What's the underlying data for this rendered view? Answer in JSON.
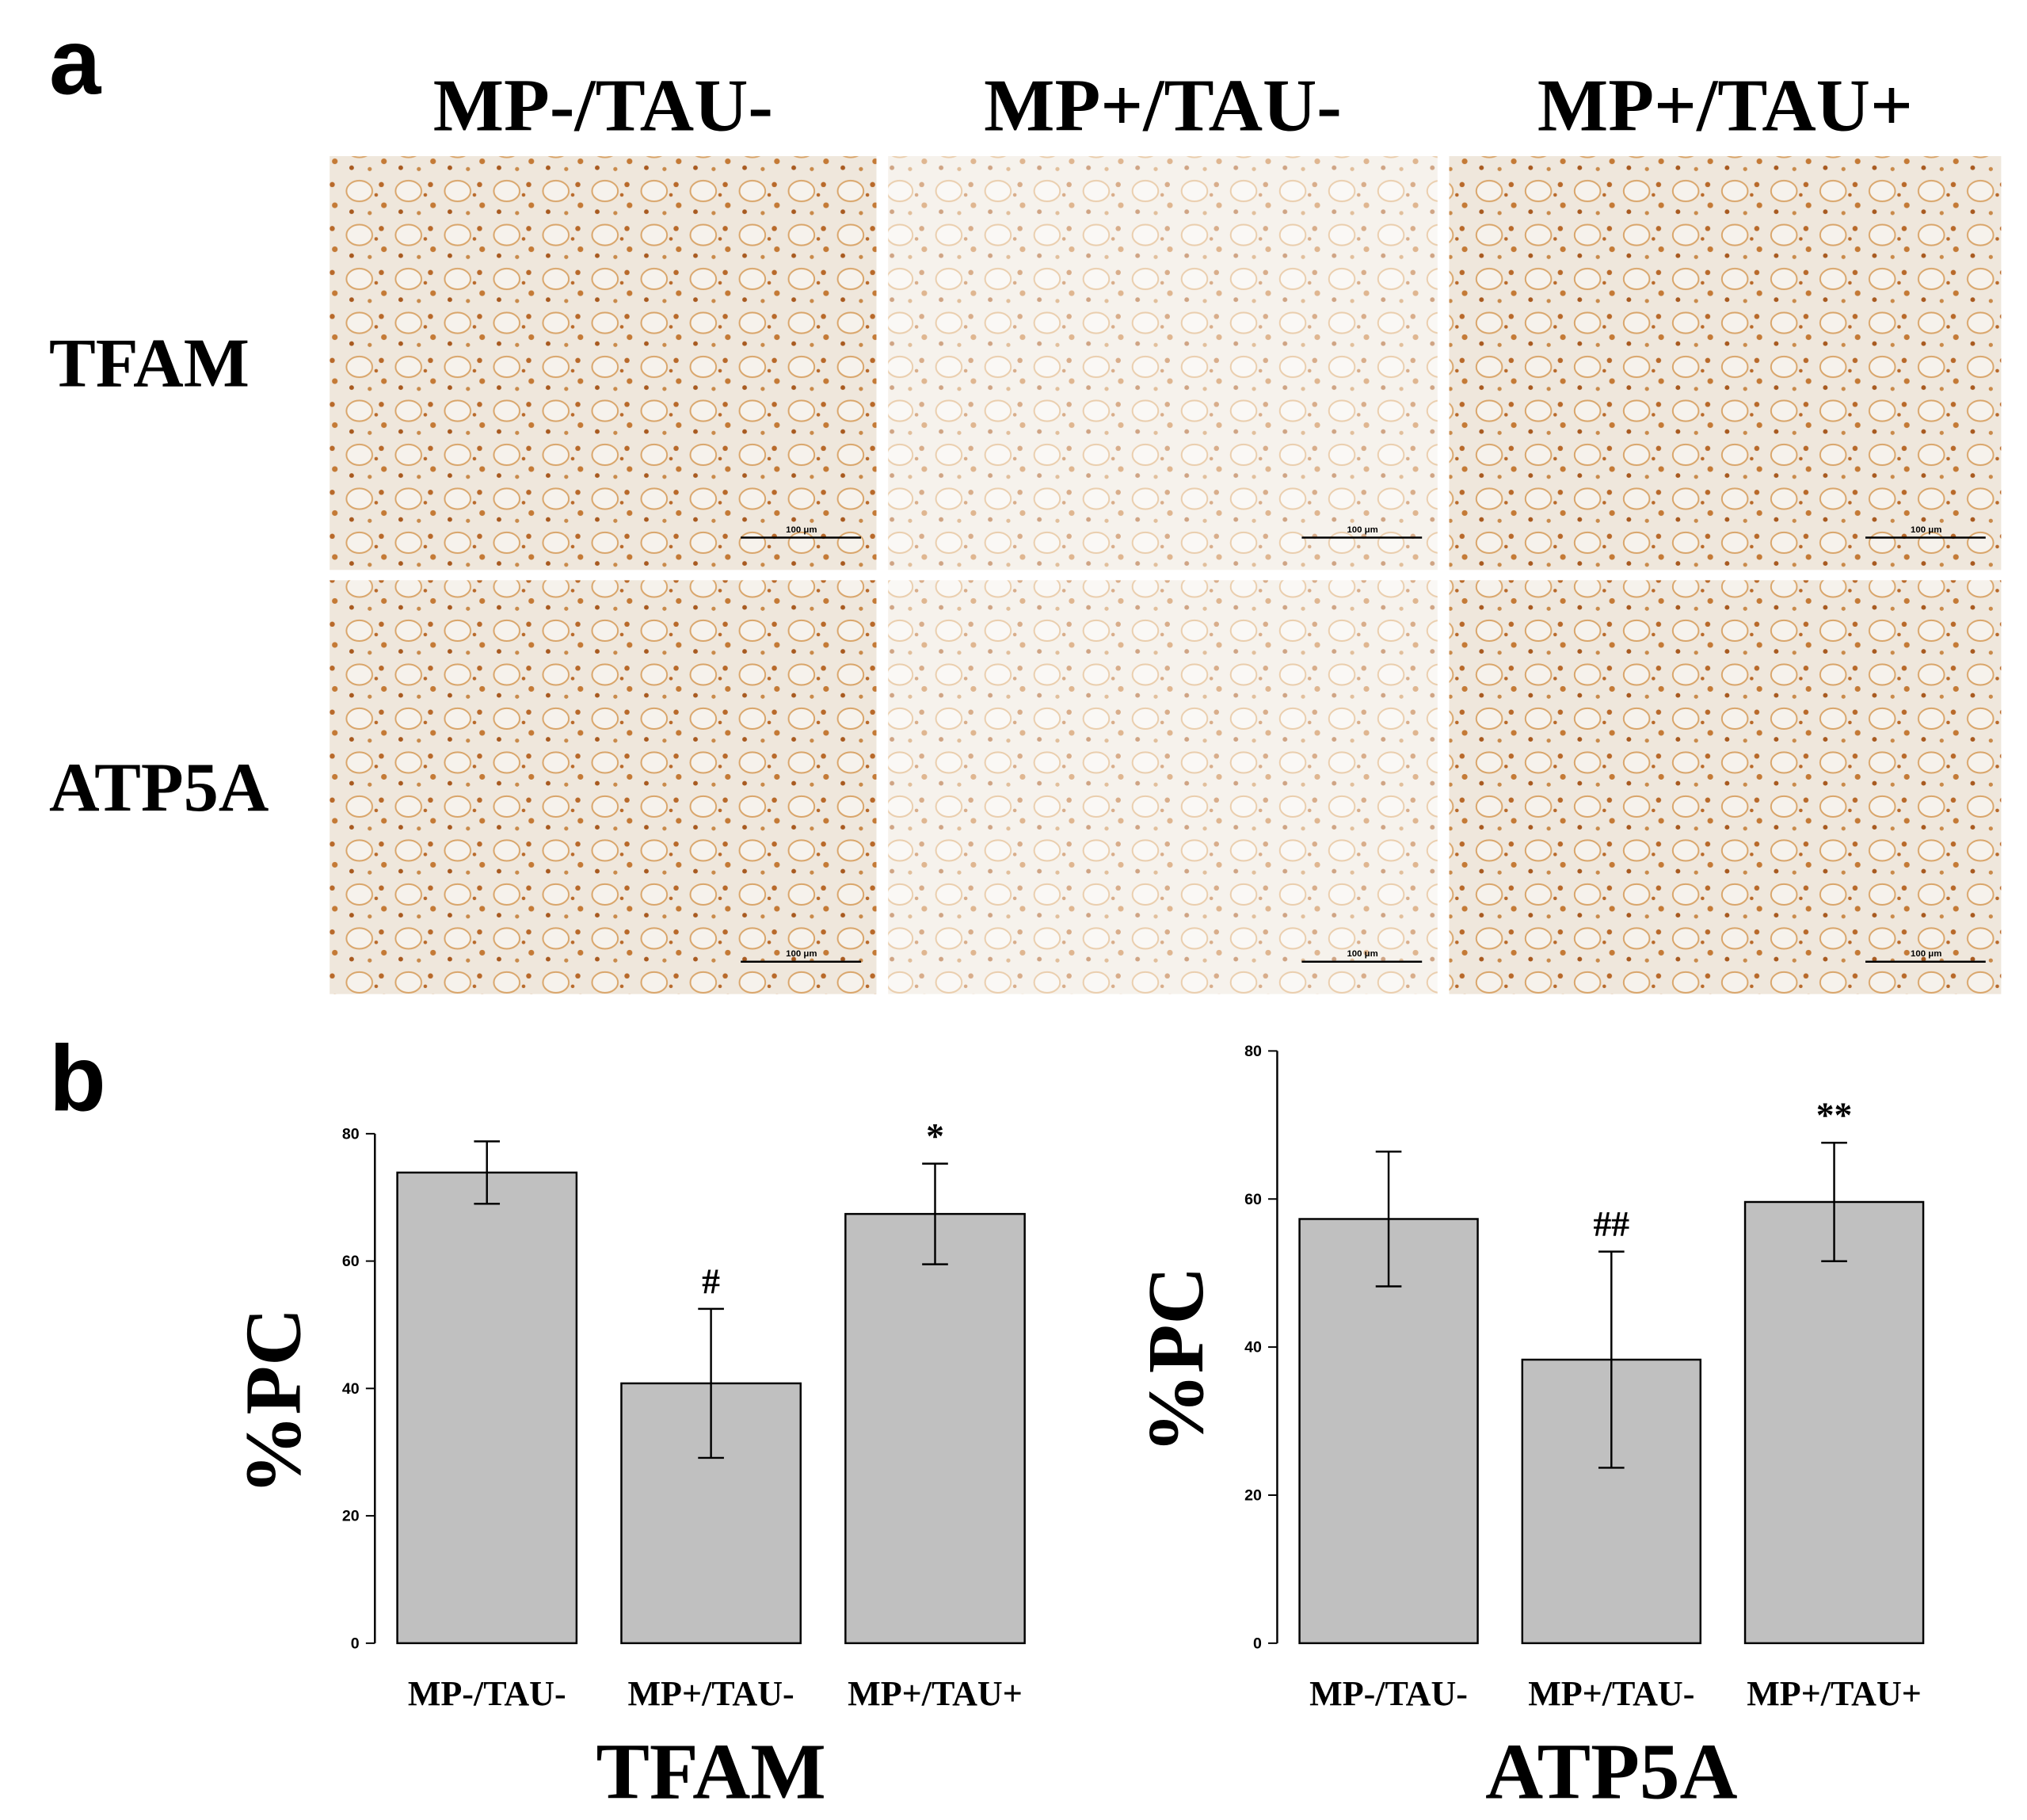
{
  "panel_a": {
    "label": "a",
    "columns": [
      "MP-/TAU-",
      "MP+/TAU-",
      "MP+/TAU+"
    ],
    "rows": [
      "TFAM",
      "ATP5A"
    ],
    "scale_bar": "100 μm"
  },
  "panel_b": {
    "label": "b"
  },
  "chart_data": [
    {
      "type": "bar",
      "categories": [
        "MP-/TAU-",
        "MP+/TAU-",
        "MP+/TAU+"
      ],
      "values": [
        73.9,
        40.8,
        67.4
      ],
      "errors": [
        4.9,
        11.7,
        7.9
      ],
      "color": "#c0c0c0",
      "ylim": [
        0,
        80
      ],
      "yticks": [
        0,
        20,
        40,
        60,
        80
      ],
      "ylabel": "%PC",
      "xlabel": "TFAM",
      "annotations": [
        {
          "category": "MP+/TAU-",
          "text": "#"
        },
        {
          "category": "MP+/TAU+",
          "text": "*"
        }
      ]
    },
    {
      "type": "bar",
      "categories": [
        "MP-/TAU-",
        "MP+/TAU-",
        "MP+/TAU+"
      ],
      "values": [
        57.3,
        38.3,
        59.6
      ],
      "errors": [
        9.1,
        14.6,
        8.0
      ],
      "color": "#c0c0c0",
      "ylim": [
        0,
        80
      ],
      "yticks": [
        0,
        20,
        40,
        60,
        80
      ],
      "ylabel": "%PC",
      "xlabel": "ATP5A",
      "annotations": [
        {
          "category": "MP+/TAU-",
          "text": "##"
        },
        {
          "category": "MP+/TAU+",
          "text": "**"
        }
      ]
    }
  ]
}
